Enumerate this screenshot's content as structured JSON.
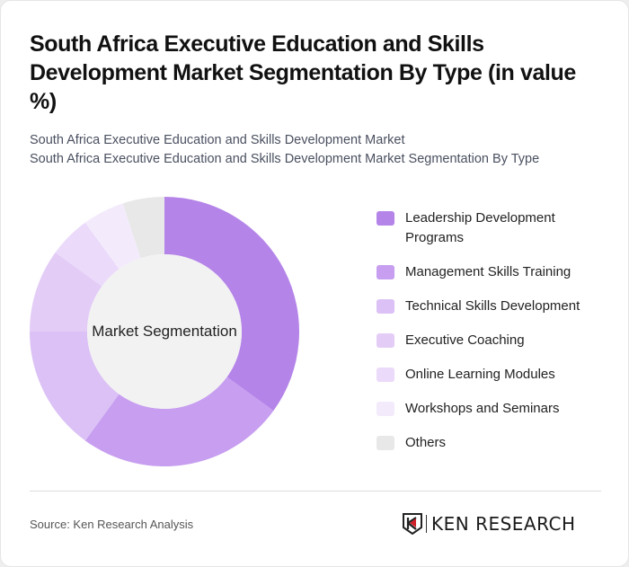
{
  "title": "South Africa Executive Education and Skills Development Market Segmentation By Type (in value %)",
  "subtitle_line1": "South Africa Executive Education and Skills Development Market",
  "subtitle_line2": "South Africa Executive Education and Skills Development Market Segmentation By Type",
  "center_label": "Market Segmentation",
  "legend": [
    {
      "label": "Leadership Development Programs",
      "color": "#b584e9"
    },
    {
      "label": "Management Skills Training",
      "color": "#c79ef0"
    },
    {
      "label": "Technical Skills Development",
      "color": "#dbc1f5"
    },
    {
      "label": "Executive Coaching",
      "color": "#e3cdf7"
    },
    {
      "label": "Online Learning Modules",
      "color": "#ebdafa"
    },
    {
      "label": "Workshops and Seminars",
      "color": "#f3ebfc"
    },
    {
      "label": "Others",
      "color": "#e8e8e8"
    }
  ],
  "source": "Source: Ken Research Analysis",
  "logo": {
    "text": "KEN RESEARCH"
  },
  "chart_data": {
    "type": "pie",
    "subtype": "donut",
    "title": "South Africa Executive Education and Skills Development Market Segmentation By Type (in value %)",
    "center_label": "Market Segmentation",
    "categories": [
      "Leadership Development Programs",
      "Management Skills Training",
      "Technical Skills Development",
      "Executive Coaching",
      "Online Learning Modules",
      "Workshops and Seminars",
      "Others"
    ],
    "values": [
      35,
      25,
      15,
      10,
      5,
      5,
      5
    ],
    "colors": [
      "#b584e9",
      "#c79ef0",
      "#dbc1f5",
      "#e3cdf7",
      "#ebdafa",
      "#f3ebfc",
      "#e8e8e8"
    ],
    "legend_position": "right",
    "start_angle": "12 o'clock, clockwise"
  }
}
